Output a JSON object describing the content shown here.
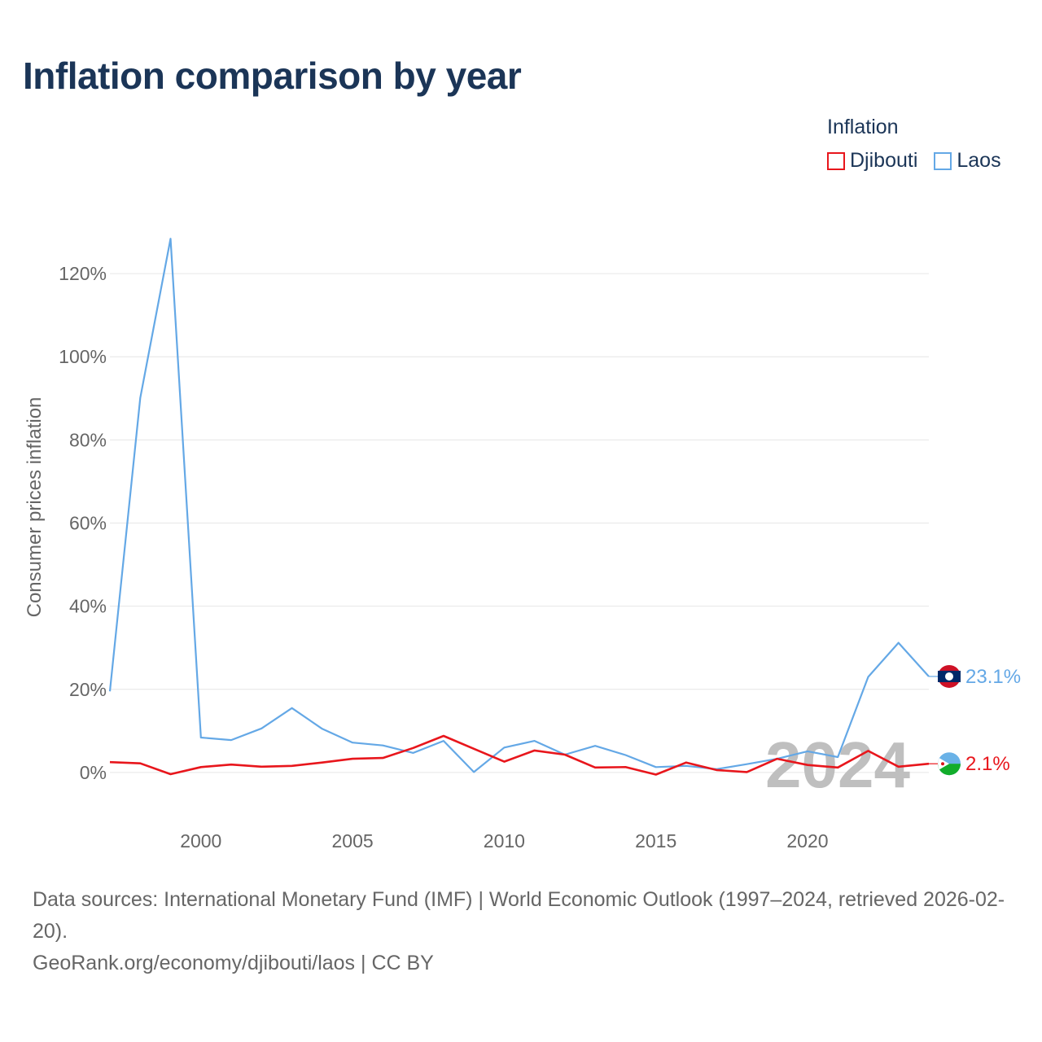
{
  "title": "Inflation comparison by year",
  "legend": {
    "title": "Inflation",
    "items": [
      {
        "name": "Djibouti",
        "color": "#e8161c"
      },
      {
        "name": "Laos",
        "color": "#64a8e6"
      }
    ]
  },
  "chart_data": {
    "type": "line",
    "title": "Inflation comparison by year",
    "xlabel": "",
    "ylabel": "Consumer prices inflation",
    "xlim": [
      1997,
      2024
    ],
    "ylim": [
      -10,
      130
    ],
    "x_ticks": [
      2000,
      2005,
      2010,
      2015,
      2020
    ],
    "y_ticks": [
      0,
      20,
      40,
      60,
      80,
      100,
      120
    ],
    "y_tick_labels": [
      "0%",
      "20%",
      "40%",
      "60%",
      "80%",
      "100%",
      "120%"
    ],
    "grid": true,
    "x": [
      1997,
      1998,
      1999,
      2000,
      2001,
      2002,
      2003,
      2004,
      2005,
      2006,
      2007,
      2008,
      2009,
      2010,
      2011,
      2012,
      2013,
      2014,
      2015,
      2016,
      2017,
      2018,
      2019,
      2020,
      2021,
      2022,
      2023,
      2024
    ],
    "series": [
      {
        "name": "Laos",
        "color": "#64a8e6",
        "values": [
          19.5,
          90.1,
          128.4,
          8.4,
          7.8,
          10.6,
          15.5,
          10.5,
          7.2,
          6.5,
          4.7,
          7.6,
          0.1,
          6.0,
          7.6,
          4.3,
          6.4,
          4.2,
          1.3,
          1.6,
          0.8,
          2.0,
          3.3,
          5.1,
          3.7,
          23.0,
          31.2,
          23.1
        ],
        "end_label": "23.1%"
      },
      {
        "name": "Djibouti",
        "color": "#e8161c",
        "values": [
          2.5,
          2.2,
          -0.4,
          1.3,
          1.9,
          1.4,
          1.6,
          2.4,
          3.3,
          3.5,
          5.9,
          8.8,
          5.7,
          2.6,
          5.3,
          4.3,
          1.2,
          1.3,
          -0.5,
          2.4,
          0.6,
          0.1,
          3.3,
          1.8,
          1.2,
          5.2,
          1.4,
          2.1
        ],
        "end_label": "2.1%"
      }
    ],
    "annotations": [
      "2024"
    ]
  },
  "footer": {
    "sources": "Data sources: International Monetary Fund (IMF) | World Economic Outlook (1997–2024, retrieved 2026-02-20).",
    "credit": "GeoRank.org/economy/djibouti/laos | CC BY"
  }
}
